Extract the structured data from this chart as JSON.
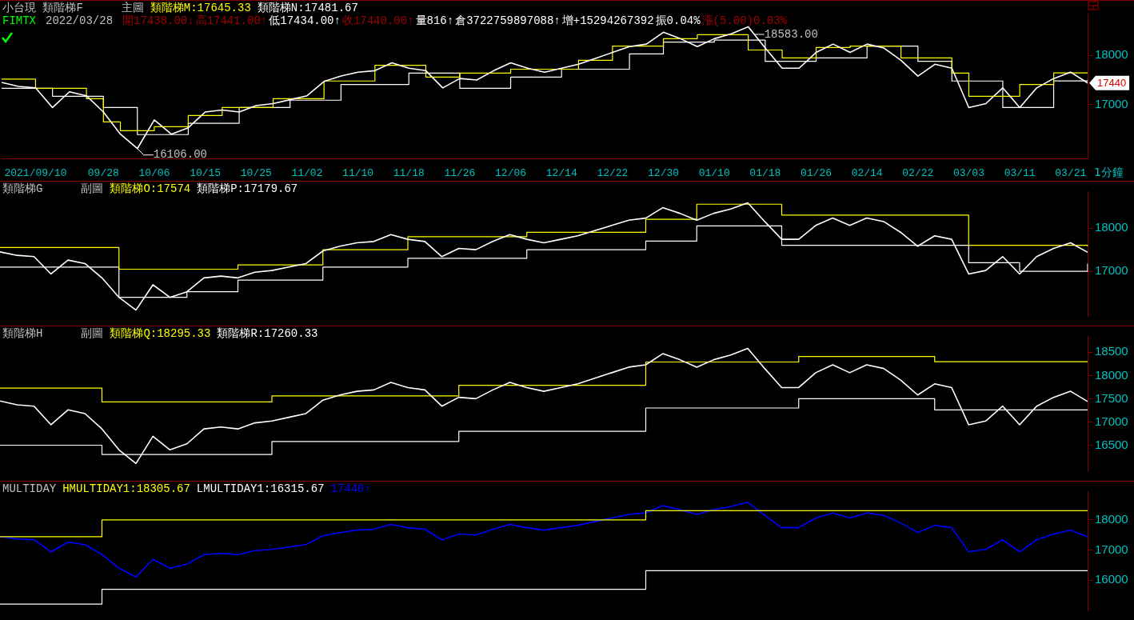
{
  "chart_data": [
    {
      "type": "line",
      "title": "小台現 類階梯F",
      "subtitle": "主圖",
      "legend": "top left",
      "categories": [
        null,
        null,
        "2021/09/10",
        null,
        null,
        null,
        "09/28",
        null,
        null,
        "10/06",
        null,
        null,
        "10/15",
        null,
        null,
        "10/25",
        null,
        null,
        "11/02",
        null,
        null,
        "11/10",
        null,
        null,
        "11/18",
        null,
        null,
        "11/26",
        null,
        null,
        "12/06",
        null,
        null,
        "12/14",
        null,
        null,
        "12/22",
        null,
        null,
        "12/30",
        null,
        null,
        "01/10",
        null,
        null,
        "01/18",
        null,
        null,
        "01/26",
        null,
        null,
        "02/14",
        null,
        null,
        "02/22",
        null,
        null,
        "03/03",
        null,
        null,
        "03/11",
        null,
        null,
        "03/21",
        null
      ],
      "ylim": [
        15900,
        18850
      ],
      "yticks": [
        17000,
        18000
      ],
      "annotations": [
        "FIMTX",
        "2022/03/28",
        "開17438.00↓",
        "高17441.00↑",
        "低17434.00↑",
        "收17440.00↑",
        "量816↑",
        "倉3722759897088↑",
        "增+15294267392",
        "振0.04%",
        "漲(5.00)0.03%",
        "1分鐘",
        "18583.00",
        "16106.00",
        "17440"
      ],
      "series": [
        {
          "type": "line",
          "color": "#ffffff",
          "values": [
            17450,
            17370,
            17340,
            16940,
            17260,
            17180,
            16850,
            16400,
            16106,
            16690,
            16400,
            16530,
            16850,
            16890,
            16850,
            16980,
            17020,
            17100,
            17180,
            17470,
            17580,
            17660,
            17690,
            17850,
            17740,
            17690,
            17340,
            17530,
            17500,
            17690,
            17850,
            17740,
            17660,
            17740,
            17820,
            17940,
            18060,
            18180,
            18230,
            18470,
            18340,
            18180,
            18340,
            18440,
            18583,
            18150,
            17740,
            17740,
            18060,
            18230,
            18060,
            18230,
            18150,
            17900,
            17580,
            17820,
            17740,
            16940,
            17020,
            17340,
            16940,
            17340,
            17530,
            17660,
            17440
          ]
        },
        {
          "type": "step",
          "name": "類階梯M:17645.33",
          "color": "#ffff00",
          "values": [
            17520,
            17520,
            17330,
            17330,
            17330,
            17120,
            16650,
            16470,
            16470,
            16550,
            16550,
            16780,
            16780,
            16940,
            16940,
            16940,
            17120,
            17120,
            17120,
            17480,
            17480,
            17480,
            17800,
            17800,
            17800,
            17560,
            17560,
            17640,
            17640,
            17640,
            17720,
            17720,
            17720,
            17720,
            17900,
            17900,
            18190,
            18190,
            18190,
            18340,
            18340,
            18420,
            18420,
            18420,
            18110,
            18110,
            17950,
            17950,
            18160,
            18160,
            18190,
            18190,
            18190,
            17950,
            17950,
            17950,
            17640,
            17170,
            17170,
            17170,
            17410,
            17410,
            17645.33,
            17645.33,
            17645.33
          ]
        },
        {
          "type": "step",
          "name": "類階梯N:17481.67",
          "color": "#ffffff",
          "values": [
            17330,
            17330,
            17330,
            17170,
            17170,
            17170,
            16940,
            16940,
            16390,
            16390,
            16390,
            16620,
            16620,
            16620,
            16940,
            16940,
            16940,
            17090,
            17090,
            17090,
            17410,
            17410,
            17410,
            17410,
            17640,
            17640,
            17640,
            17330,
            17330,
            17330,
            17560,
            17560,
            17560,
            17720,
            17720,
            17720,
            17720,
            18030,
            18030,
            18270,
            18270,
            18270,
            18310,
            18310,
            18310,
            17880,
            17880,
            17880,
            17950,
            17950,
            17950,
            18190,
            18190,
            18190,
            17880,
            17880,
            17480,
            17480,
            17480,
            16940,
            16940,
            16940,
            17481.67,
            17481.67,
            17481.67
          ]
        }
      ]
    },
    {
      "type": "line",
      "title": "類階梯G",
      "subtitle": "副圖",
      "legend": "top left",
      "tick_labels": "y",
      "categories": [
        null,
        null,
        null,
        null,
        null,
        null,
        null,
        null,
        null,
        null,
        null,
        null,
        null,
        null,
        null,
        null,
        null,
        null,
        null,
        null,
        null,
        null,
        null,
        null,
        null,
        null,
        null,
        null,
        null,
        null,
        null,
        null,
        null,
        null,
        null,
        null,
        null,
        null,
        null,
        null,
        null,
        null,
        null,
        null,
        null,
        null,
        null,
        null,
        null,
        null,
        null,
        null,
        null,
        null,
        null,
        null,
        null,
        null,
        null,
        null,
        null,
        null,
        null,
        null,
        null
      ],
      "ylim": [
        15970,
        18850
      ],
      "yticks": [
        17000,
        18000
      ],
      "series": [
        {
          "type": "line",
          "color": "#ffffff",
          "values": [
            17450,
            17370,
            17340,
            16940,
            17260,
            17180,
            16850,
            16400,
            16106,
            16690,
            16400,
            16530,
            16850,
            16890,
            16850,
            16980,
            17020,
            17100,
            17180,
            17470,
            17580,
            17660,
            17690,
            17850,
            17740,
            17690,
            17340,
            17530,
            17500,
            17690,
            17850,
            17740,
            17660,
            17740,
            17820,
            17940,
            18060,
            18180,
            18230,
            18470,
            18340,
            18180,
            18340,
            18440,
            18583,
            18150,
            17740,
            17740,
            18060,
            18230,
            18060,
            18230,
            18150,
            17900,
            17580,
            17820,
            17740,
            16940,
            17020,
            17340,
            16940,
            17340,
            17530,
            17660,
            17440
          ]
        },
        {
          "type": "step",
          "name": "類階梯O:17574",
          "color": "#ffff00",
          "values": [
            17550,
            17550,
            17550,
            17550,
            17550,
            17550,
            17550,
            17050,
            17050,
            17050,
            17050,
            17050,
            17050,
            17050,
            17150,
            17150,
            17150,
            17150,
            17150,
            17500,
            17500,
            17500,
            17500,
            17500,
            17800,
            17800,
            17800,
            17800,
            17800,
            17800,
            17800,
            17900,
            17900,
            17900,
            17900,
            17900,
            17900,
            17900,
            18200,
            18200,
            18200,
            18550,
            18550,
            18550,
            18550,
            18550,
            18300,
            18300,
            18300,
            18300,
            18300,
            18300,
            18300,
            18300,
            18300,
            18300,
            18300,
            17600,
            17600,
            17600,
            17600,
            17600,
            17600,
            17600,
            17574
          ]
        },
        {
          "type": "step",
          "name": "類階梯P:17179.67",
          "color": "#ffffff",
          "values": [
            17100,
            17100,
            17100,
            17100,
            17100,
            17100,
            17100,
            16400,
            16400,
            16400,
            16400,
            16530,
            16530,
            16530,
            16800,
            16800,
            16800,
            16800,
            16800,
            17100,
            17100,
            17100,
            17100,
            17100,
            17300,
            17300,
            17300,
            17300,
            17300,
            17300,
            17300,
            17500,
            17500,
            17500,
            17500,
            17500,
            17500,
            17500,
            17700,
            17700,
            17700,
            18050,
            18050,
            18050,
            18050,
            18050,
            17600,
            17600,
            17600,
            17600,
            17600,
            17600,
            17600,
            17600,
            17600,
            17600,
            17600,
            17200,
            17200,
            17200,
            17000,
            17000,
            17000,
            17000,
            17179.67
          ]
        }
      ]
    },
    {
      "type": "line",
      "title": "類階梯H",
      "subtitle": "副圖",
      "legend": "top left",
      "tick_labels": "y",
      "categories": [
        null,
        null,
        null,
        null,
        null,
        null,
        null,
        null,
        null,
        null,
        null,
        null,
        null,
        null,
        null,
        null,
        null,
        null,
        null,
        null,
        null,
        null,
        null,
        null,
        null,
        null,
        null,
        null,
        null,
        null,
        null,
        null,
        null,
        null,
        null,
        null,
        null,
        null,
        null,
        null,
        null,
        null,
        null,
        null,
        null,
        null,
        null,
        null,
        null,
        null,
        null,
        null,
        null,
        null,
        null,
        null,
        null,
        null,
        null,
        null,
        null,
        null,
        null,
        null,
        null
      ],
      "ylim": [
        15940,
        18850
      ],
      "yticks": [
        16500,
        17000,
        17500,
        18000,
        18500
      ],
      "series": [
        {
          "type": "line",
          "color": "#ffffff",
          "values": [
            17450,
            17370,
            17340,
            16940,
            17260,
            17180,
            16850,
            16400,
            16106,
            16690,
            16400,
            16530,
            16850,
            16890,
            16850,
            16980,
            17020,
            17100,
            17180,
            17470,
            17580,
            17660,
            17690,
            17850,
            17740,
            17690,
            17340,
            17530,
            17500,
            17690,
            17850,
            17740,
            17660,
            17740,
            17820,
            17940,
            18060,
            18180,
            18230,
            18470,
            18340,
            18180,
            18340,
            18440,
            18583,
            18150,
            17740,
            17740,
            18060,
            18230,
            18060,
            18230,
            18150,
            17900,
            17580,
            17820,
            17740,
            16940,
            17020,
            17340,
            16940,
            17340,
            17530,
            17660,
            17440
          ]
        },
        {
          "type": "step",
          "name": "類階梯Q:18295.33",
          "color": "#ffff00",
          "values": [
            17730,
            17730,
            17730,
            17730,
            17730,
            17730,
            17430,
            17430,
            17430,
            17430,
            17430,
            17430,
            17430,
            17430,
            17430,
            17430,
            17560,
            17560,
            17560,
            17560,
            17560,
            17560,
            17560,
            17560,
            17560,
            17560,
            17560,
            17790,
            17790,
            17790,
            17790,
            17790,
            17790,
            17790,
            17790,
            17790,
            17790,
            17790,
            18290,
            18290,
            18290,
            18290,
            18290,
            18290,
            18290,
            18290,
            18290,
            18410,
            18410,
            18410,
            18410,
            18410,
            18410,
            18410,
            18410,
            18295.33,
            18295.33,
            18295.33,
            18295.33,
            18295.33,
            18295.33,
            18295.33,
            18295.33,
            18295.33,
            18295.33
          ]
        },
        {
          "type": "step",
          "name": "類階梯R:17260.33",
          "color": "#ffffff",
          "values": [
            16500,
            16500,
            16500,
            16500,
            16500,
            16500,
            16300,
            16300,
            16300,
            16300,
            16300,
            16300,
            16300,
            16300,
            16300,
            16300,
            16580,
            16580,
            16580,
            16580,
            16580,
            16580,
            16580,
            16580,
            16580,
            16580,
            16580,
            16800,
            16800,
            16800,
            16800,
            16800,
            16800,
            16800,
            16800,
            16800,
            16800,
            16800,
            17300,
            17300,
            17300,
            17300,
            17300,
            17300,
            17300,
            17300,
            17300,
            17500,
            17500,
            17500,
            17500,
            17500,
            17500,
            17500,
            17500,
            17260.33,
            17260.33,
            17260.33,
            17260.33,
            17260.33,
            17260.33,
            17260.33,
            17260.33,
            17260.33,
            17260.33
          ]
        }
      ]
    },
    {
      "type": "line",
      "title": "MULTIDAY",
      "legend": "top left",
      "tick_labels": "y",
      "categories": [
        null,
        null,
        null,
        null,
        null,
        null,
        null,
        null,
        null,
        null,
        null,
        null,
        null,
        null,
        null,
        null,
        null,
        null,
        null,
        null,
        null,
        null,
        null,
        null,
        null,
        null,
        null,
        null,
        null,
        null,
        null,
        null,
        null,
        null,
        null,
        null,
        null,
        null,
        null,
        null,
        null,
        null,
        null,
        null,
        null,
        null,
        null,
        null,
        null,
        null,
        null,
        null,
        null,
        null,
        null,
        null,
        null,
        null,
        null,
        null,
        null,
        null,
        null,
        null,
        null
      ],
      "ylim": [
        15000,
        18950
      ],
      "yticks": [
        16000,
        17000,
        18000
      ],
      "series": [
        {
          "type": "step",
          "name": "HMULTIDAY1:18305.67",
          "color": "#ffff00",
          "values": [
            17440,
            17440,
            17440,
            17440,
            17440,
            17440,
            18000,
            18000,
            18000,
            18000,
            18000,
            18000,
            18000,
            18000,
            18000,
            18000,
            18000,
            18000,
            18000,
            18000,
            18000,
            18000,
            18000,
            18000,
            18000,
            18000,
            18000,
            18000,
            18000,
            18000,
            18000,
            18000,
            18000,
            18000,
            18000,
            18000,
            18000,
            18000,
            18305.67,
            18305.67,
            18305.67,
            18305.67,
            18305.67,
            18305.67,
            18305.67,
            18305.67,
            18305.67,
            18305.67,
            18305.67,
            18305.67,
            18305.67,
            18305.67,
            18305.67,
            18305.67,
            18305.67,
            18305.67,
            18305.67,
            18305.67,
            18305.67,
            18305.67,
            18305.67,
            18305.67,
            18305.67,
            18305.67,
            18305.67
          ]
        },
        {
          "type": "step",
          "name": "LMULTIDAY1:16315.67",
          "color": "#ffffff",
          "values": [
            15210,
            15210,
            15210,
            15210,
            15210,
            15210,
            15700,
            15700,
            15700,
            15700,
            15700,
            15700,
            15700,
            15700,
            15700,
            15700,
            15700,
            15700,
            15700,
            15700,
            15700,
            15700,
            15700,
            15700,
            15700,
            15700,
            15700,
            15700,
            15700,
            15700,
            15700,
            15700,
            15700,
            15700,
            15700,
            15700,
            15700,
            15700,
            16315.67,
            16315.67,
            16315.67,
            16315.67,
            16315.67,
            16315.67,
            16315.67,
            16315.67,
            16315.67,
            16315.67,
            16315.67,
            16315.67,
            16315.67,
            16315.67,
            16315.67,
            16315.67,
            16315.67,
            16315.67,
            16315.67,
            16315.67,
            16315.67,
            16315.67,
            16315.67,
            16315.67,
            16315.67,
            16315.67,
            16315.67
          ]
        },
        {
          "type": "line",
          "name": "17440↑",
          "color": "#0000ff",
          "values": [
            17450,
            17370,
            17340,
            16940,
            17260,
            17180,
            16850,
            16400,
            16106,
            16690,
            16400,
            16530,
            16850,
            16890,
            16850,
            16980,
            17020,
            17100,
            17180,
            17470,
            17580,
            17660,
            17690,
            17850,
            17740,
            17690,
            17340,
            17530,
            17500,
            17690,
            17850,
            17740,
            17660,
            17740,
            17820,
            17940,
            18060,
            18180,
            18230,
            18470,
            18340,
            18180,
            18340,
            18440,
            18583,
            18150,
            17740,
            17740,
            18060,
            18230,
            18060,
            18230,
            18150,
            17900,
            17580,
            17820,
            17740,
            16940,
            17020,
            17340,
            16940,
            17340,
            17530,
            17660,
            17440
          ]
        }
      ]
    }
  ]
}
